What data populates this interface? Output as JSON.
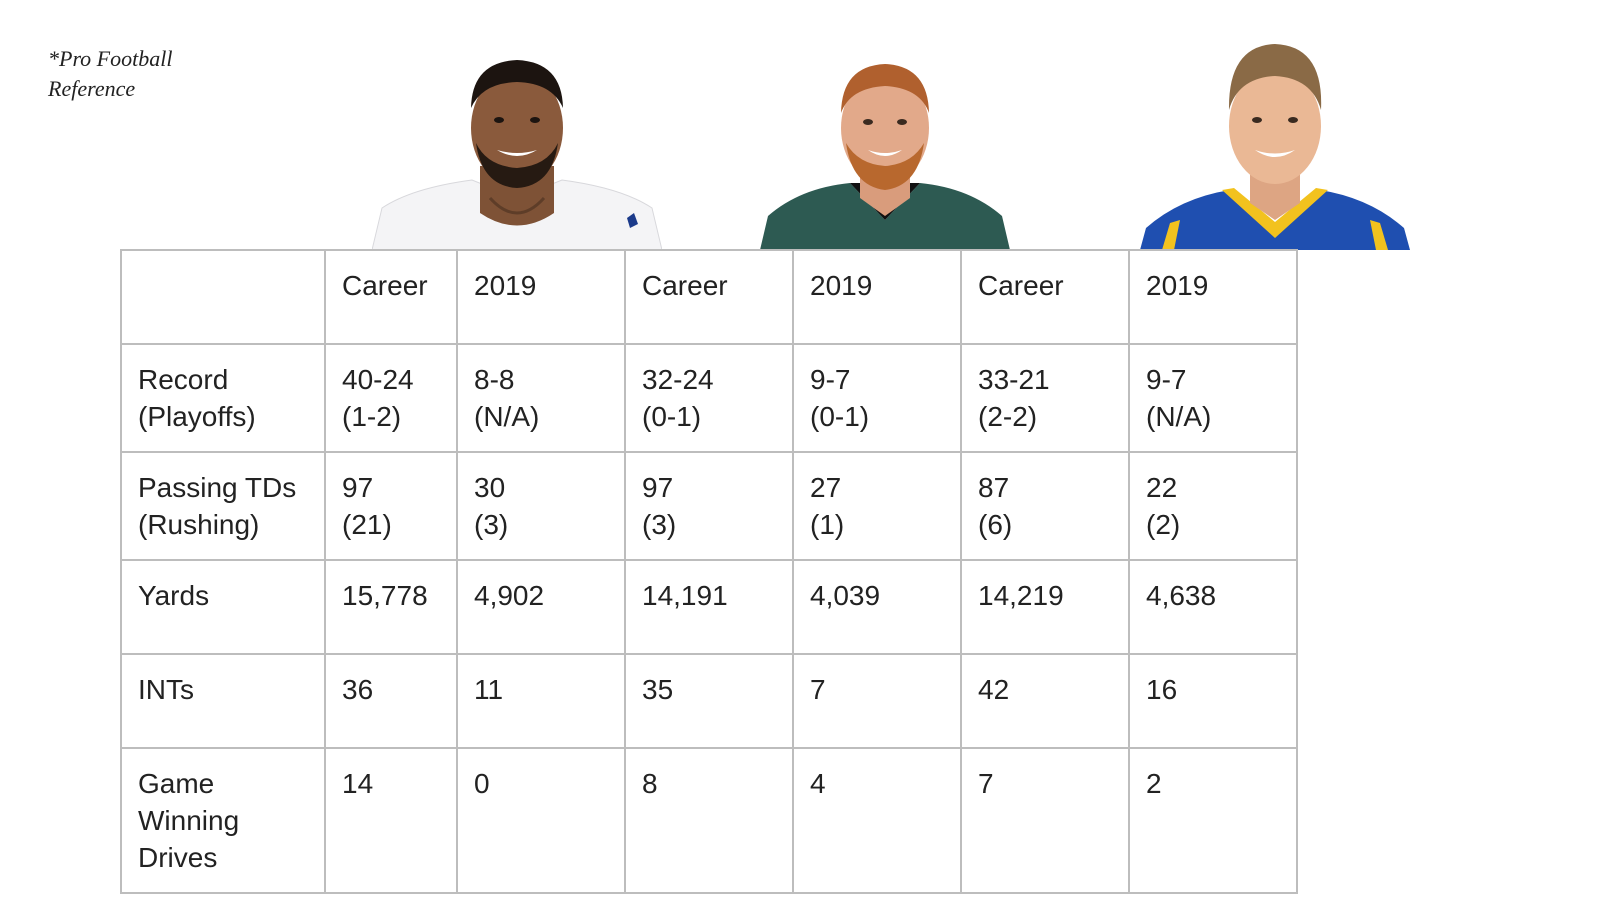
{
  "source_note": "*Pro Football\nReference",
  "players": [
    {
      "photo": "player-1-portrait",
      "jersey_color": "#f4f4f6",
      "skin": "#8a5a3c"
    },
    {
      "photo": "player-2-portrait",
      "jersey_color": "#2d5a52",
      "skin": "#e2a98a"
    },
    {
      "photo": "player-3-portrait",
      "jersey_color": "#1f4fb0",
      "skin": "#eab895"
    }
  ],
  "table": {
    "header": [
      "",
      "Career",
      "2019",
      "Career",
      "2019",
      "Career",
      "2019"
    ],
    "rows": [
      {
        "label": "Record\n(Playoffs)",
        "values": [
          "40-24\n(1-2)",
          "8-8\n(N/A)",
          "32-24\n(0-1)",
          "9-7\n(0-1)",
          "33-21\n(2-2)",
          "9-7\n(N/A)"
        ]
      },
      {
        "label": "Passing TDs\n(Rushing)",
        "values": [
          "97\n(21)",
          "30\n(3)",
          "97\n(3)",
          "27\n(1)",
          "87\n(6)",
          "22\n(2)"
        ]
      },
      {
        "label": "Yards",
        "values": [
          "15,778",
          "4,902",
          "14,191",
          "4,039",
          "14,219",
          "4,638"
        ]
      },
      {
        "label": "INTs",
        "values": [
          "36",
          "11",
          "35",
          "7",
          "42",
          "16"
        ]
      },
      {
        "label": "Game\nWinning\nDrives",
        "values": [
          "14",
          "0",
          "8",
          "4",
          "7",
          "2"
        ]
      }
    ]
  }
}
